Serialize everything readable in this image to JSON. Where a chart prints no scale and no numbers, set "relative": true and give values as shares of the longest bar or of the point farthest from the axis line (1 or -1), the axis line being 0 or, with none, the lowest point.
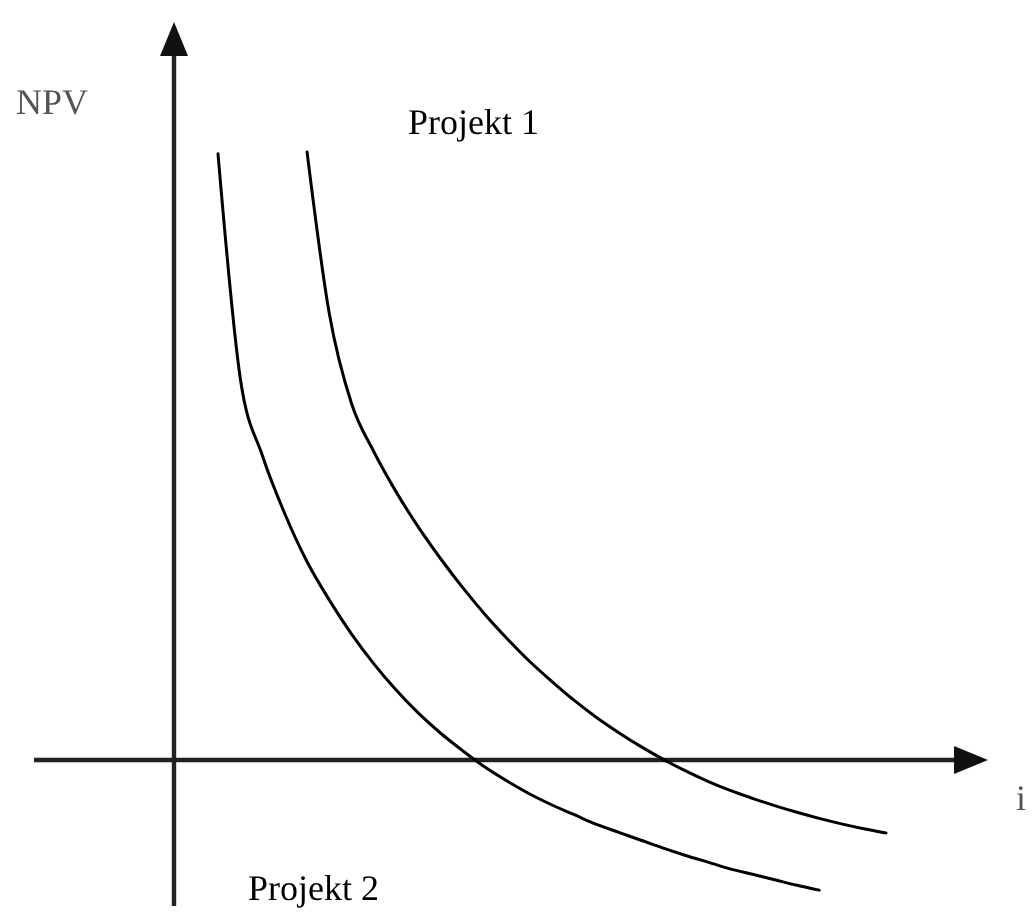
{
  "chart_data": {
    "type": "line",
    "relative": true,
    "xlabel": "i",
    "ylabel": "NPV",
    "annotations": [
      "Projekt 1",
      "Projekt 2"
    ],
    "categories": [
      null,
      null,
      null,
      null,
      null,
      null,
      null,
      null,
      null,
      null,
      null,
      null,
      null,
      null,
      null,
      null,
      null,
      null,
      null,
      null,
      null,
      null,
      null,
      null,
      null,
      null,
      null,
      null,
      null,
      null,
      null
    ],
    "series": [
      {
        "color": "#000000",
        "values": [
          null,
          null,
          null,
          null,
          1,
          0.734,
          0.586,
          0.507,
          0.441,
          0.383,
          0.331,
          0.283,
          0.239,
          0.199,
          0.162,
          0.129,
          0.098,
          0.07,
          0.045,
          0.022,
          0.001,
          -0.018,
          -0.035,
          -0.05,
          -0.063,
          -0.075,
          -0.086,
          -0.096,
          -0.105,
          -0.113,
          -0.12
        ]
      },
      {
        "color": "#000000",
        "values": [
          0.997,
          0.628,
          0.5,
          0.405,
          0.326,
          0.263,
          0.207,
          0.158,
          0.115,
          0.077,
          0.044,
          0.015,
          -0.012,
          -0.035,
          -0.056,
          -0.074,
          -0.09,
          -0.106,
          -0.119,
          -0.132,
          -0.145,
          -0.157,
          -0.168,
          -0.179,
          -0.188,
          -0.197,
          -0.206,
          -0.214,
          null,
          null,
          null
        ]
      }
    ]
  }
}
